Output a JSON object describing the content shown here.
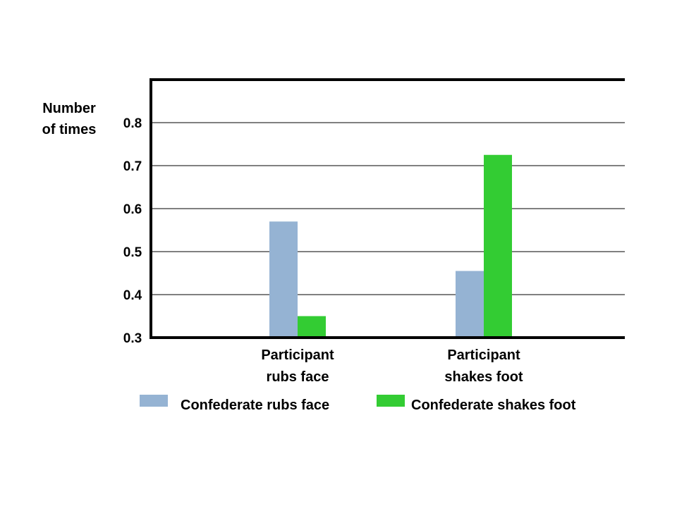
{
  "chart_data": {
    "type": "bar",
    "title": "",
    "ylabel_lines": [
      "Number",
      "of times"
    ],
    "xlabel": "",
    "ylim": [
      0.3,
      0.9
    ],
    "yticks": [
      "0.3",
      "0.4",
      "0.5",
      "0.6",
      "0.7",
      "0.8"
    ],
    "grid": true,
    "legend_position": "bottom",
    "categories": [
      {
        "lines": [
          "Participant",
          "rubs face"
        ]
      },
      {
        "lines": [
          "Participant",
          "shakes foot"
        ]
      }
    ],
    "series": [
      {
        "name": "Confederate rubs face",
        "color": "#95b3d3",
        "values": [
          0.57,
          0.455
        ]
      },
      {
        "name": "Confederate shakes foot",
        "color": "#33cc33",
        "values": [
          0.35,
          0.725
        ]
      }
    ]
  }
}
